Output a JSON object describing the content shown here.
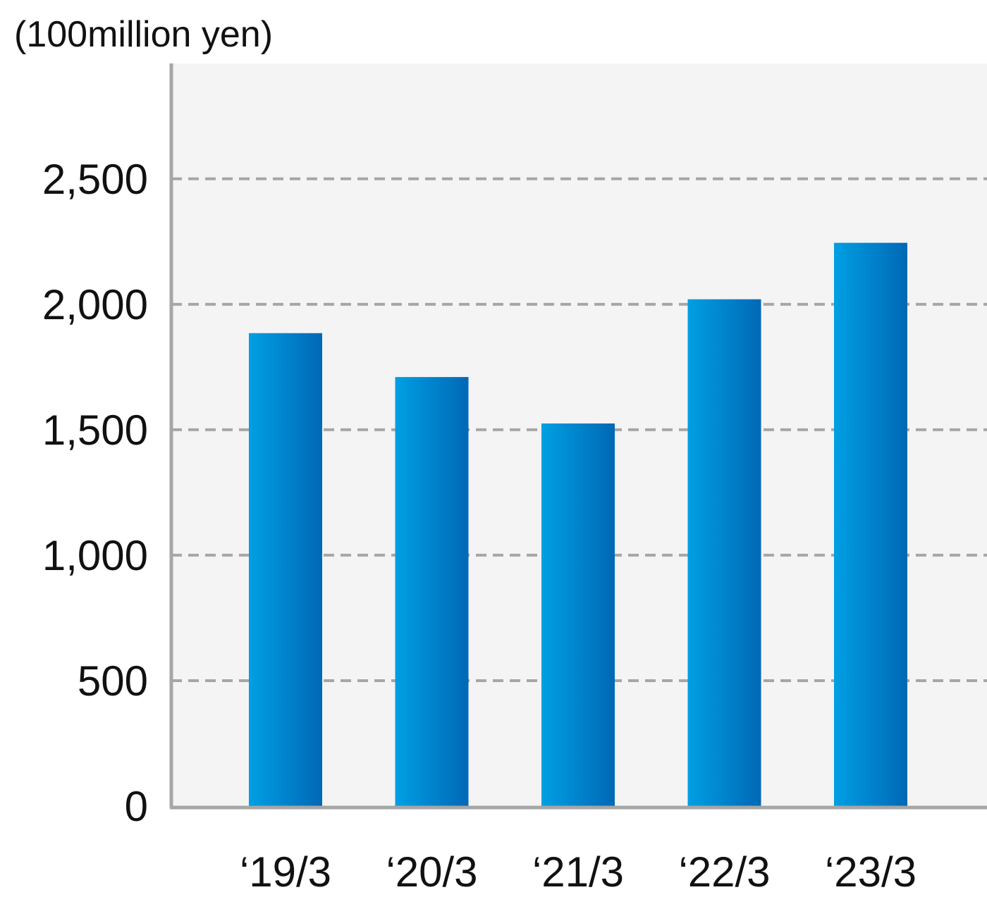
{
  "chart_data": {
    "type": "bar",
    "unit_label": "(100million yen)",
    "categories": [
      "‘19/3",
      "‘20/3",
      "‘21/3",
      "‘22/3",
      "‘23/3"
    ],
    "values": [
      1885,
      1710,
      1525,
      2020,
      2245
    ],
    "ylim": [
      0,
      2960
    ],
    "yticks": [
      0,
      500,
      1000,
      1500,
      2000,
      2500
    ],
    "ytick_labels": [
      "0",
      "500",
      "1,000",
      "1,500",
      "2,000",
      "2,500"
    ],
    "grid": true,
    "grid_style": "dashed",
    "legend": "none",
    "colors": {
      "bar_light": "#009FE3",
      "bar_dark": "#0068B5",
      "plot_bg": "#F4F4F4",
      "grid": "#A6A6A6",
      "axis": "#A6A6A6"
    }
  }
}
